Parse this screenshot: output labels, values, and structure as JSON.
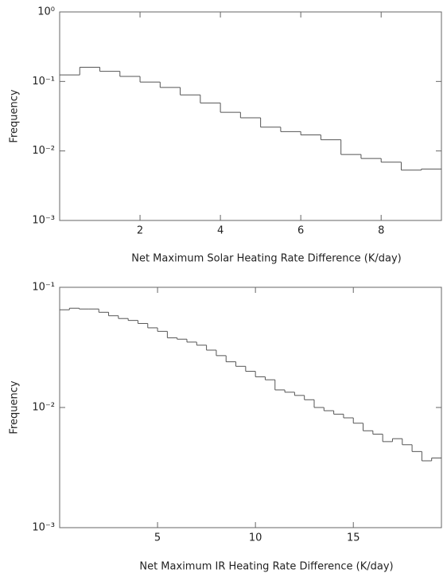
{
  "chart_data": [
    {
      "type": "histogram",
      "xlabel": "Net Maximum Solar Heating Rate Difference (K/day)",
      "ylabel": "Frequency",
      "bins": [
        0,
        0.5,
        1,
        1.5,
        2,
        2.5,
        3,
        3.5,
        4,
        4.5,
        5,
        5.5,
        6,
        6.5,
        7,
        7.5,
        8,
        8.5,
        9,
        9.5
      ],
      "values": [
        0.124,
        0.16,
        0.14,
        0.118,
        0.098,
        0.082,
        0.064,
        0.049,
        0.036,
        0.03,
        0.022,
        0.019,
        0.017,
        0.0145,
        0.0089,
        0.0078,
        0.0069,
        0.0053,
        0.0055
      ],
      "color": "#555555",
      "log_y": true,
      "xlim": [
        0,
        9.5
      ],
      "xticks": [
        2,
        4,
        6,
        8
      ],
      "ylim": [
        0.001,
        1
      ],
      "yticks": [
        {
          "value": 0.001,
          "label": "10⁻³"
        },
        {
          "value": 0.01,
          "label": "10⁻²"
        },
        {
          "value": 0.1,
          "label": "10⁻¹"
        },
        {
          "value": 1,
          "label": "10⁰"
        }
      ]
    },
    {
      "type": "histogram",
      "xlabel": "Net Maximum IR Heating Rate Difference (K/day)",
      "ylabel": "Frequency",
      "bins": [
        0,
        0.5,
        1,
        1.5,
        2,
        2.5,
        3,
        3.5,
        4,
        4.5,
        5,
        5.5,
        6,
        6.5,
        7,
        7.5,
        8,
        8.5,
        9,
        9.5,
        10,
        10.5,
        11,
        11.5,
        12,
        12.5,
        13,
        13.5,
        14,
        14.5,
        15,
        15.5,
        16,
        16.5,
        17,
        17.5,
        18,
        18.5,
        19,
        19.5
      ],
      "values": [
        0.065,
        0.067,
        0.066,
        0.066,
        0.062,
        0.058,
        0.055,
        0.053,
        0.05,
        0.046,
        0.043,
        0.038,
        0.037,
        0.035,
        0.033,
        0.03,
        0.027,
        0.024,
        0.022,
        0.02,
        0.018,
        0.017,
        0.014,
        0.0134,
        0.0126,
        0.0116,
        0.01,
        0.0094,
        0.0088,
        0.0082,
        0.0074,
        0.0064,
        0.006,
        0.0052,
        0.0055,
        0.0049,
        0.0043,
        0.0036,
        0.0038
      ],
      "color": "#555555",
      "log_y": true,
      "xlim": [
        0,
        19.5
      ],
      "xticks": [
        5,
        10,
        15
      ],
      "ylim": [
        0.001,
        0.1
      ],
      "yticks": [
        {
          "value": 0.001,
          "label": "10⁻³"
        },
        {
          "value": 0.01,
          "label": "10⁻²"
        },
        {
          "value": 0.1,
          "label": "10⁻¹"
        }
      ]
    }
  ]
}
